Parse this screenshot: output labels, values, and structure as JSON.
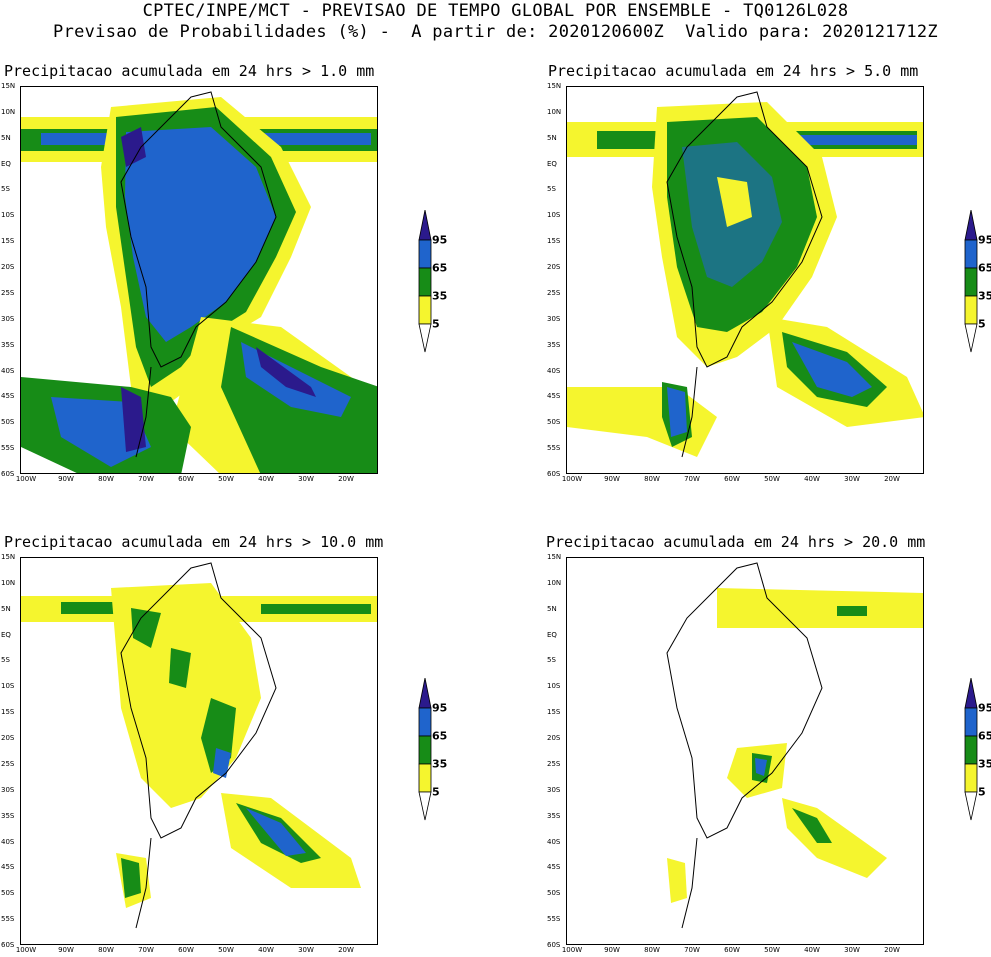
{
  "header": {
    "line1": "CPTEC/INPE/MCT - PREVISAO DE TEMPO GLOBAL POR ENSEMBLE - TQ0126L028",
    "line2": "Previsao de Probabilidades (%) -  A partir de: 2020120600Z  Valido para: 2020121712Z"
  },
  "axes": {
    "lat_ticks": [
      "15N",
      "10N",
      "5N",
      "EQ",
      "5S",
      "10S",
      "15S",
      "20S",
      "25S",
      "30S",
      "35S",
      "40S",
      "45S",
      "50S",
      "55S",
      "60S"
    ],
    "lon_ticks": [
      "100W",
      "90W",
      "80W",
      "70W",
      "60W",
      "50W",
      "40W",
      "30W",
      "20W"
    ]
  },
  "legend": {
    "levels": [
      "95",
      "65",
      "35",
      "5"
    ],
    "colors": {
      "c95": "#2b1a8c",
      "c65": "#1f64cc",
      "c35": "#178c17",
      "c5": "#f5f52e",
      "white": "#ffffff"
    }
  },
  "panels": [
    {
      "title": "Precipitacao acumulada em 24 hrs > 1.0 mm"
    },
    {
      "title": "Precipitacao acumulada em 24 hrs > 5.0 mm"
    },
    {
      "title": "Precipitacao acumulada em 24 hrs > 10.0 mm"
    },
    {
      "title": "Precipitacao acumulada em 24 hrs > 20.0 mm"
    }
  ]
}
